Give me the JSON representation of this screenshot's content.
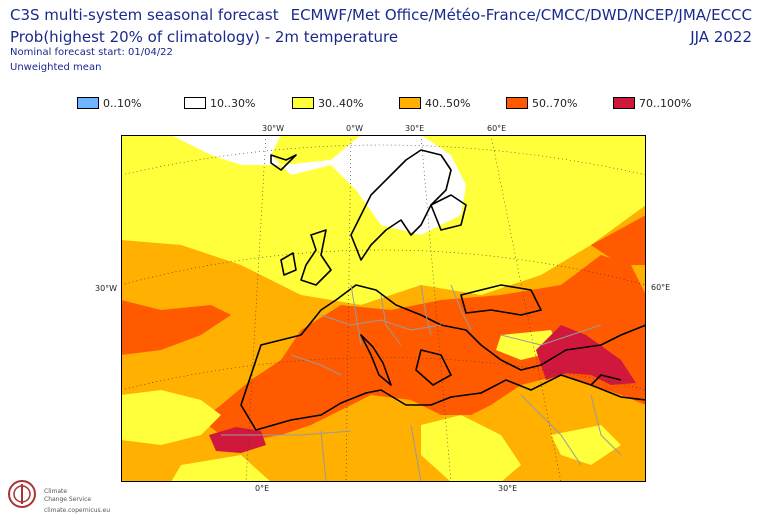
{
  "header": {
    "title": "C3S multi-system seasonal forecast",
    "subtitle": "Prob(highest 20% of climatology) - 2m temperature",
    "forecast_start": "Nominal forecast start: 01/04/22",
    "mean_type": "Unweighted mean",
    "centres": "ECMWF/Met Office/Météo-France/CMCC/DWD/NCEP/JMA/ECCC",
    "season": "JJA 2022"
  },
  "legend": [
    {
      "label": "0..10%",
      "color": "#6fb4ff"
    },
    {
      "label": "10..30%",
      "color": "#ffffff"
    },
    {
      "label": "30..40%",
      "color": "#ffff3c"
    },
    {
      "label": "40..50%",
      "color": "#ffb000"
    },
    {
      "label": "50..70%",
      "color": "#ff5a00"
    },
    {
      "label": "70..100%",
      "color": "#d0183c"
    }
  ],
  "axis_labels": {
    "top": [
      "30°W",
      "0°W",
      "30°E",
      "60°E"
    ],
    "left": "30°W",
    "right": "60°E",
    "bottom": [
      "0°E",
      "30°E"
    ]
  },
  "logo": {
    "line1": "Climate",
    "line2": "Change Service",
    "line3": "climate.copernicus.eu"
  }
}
